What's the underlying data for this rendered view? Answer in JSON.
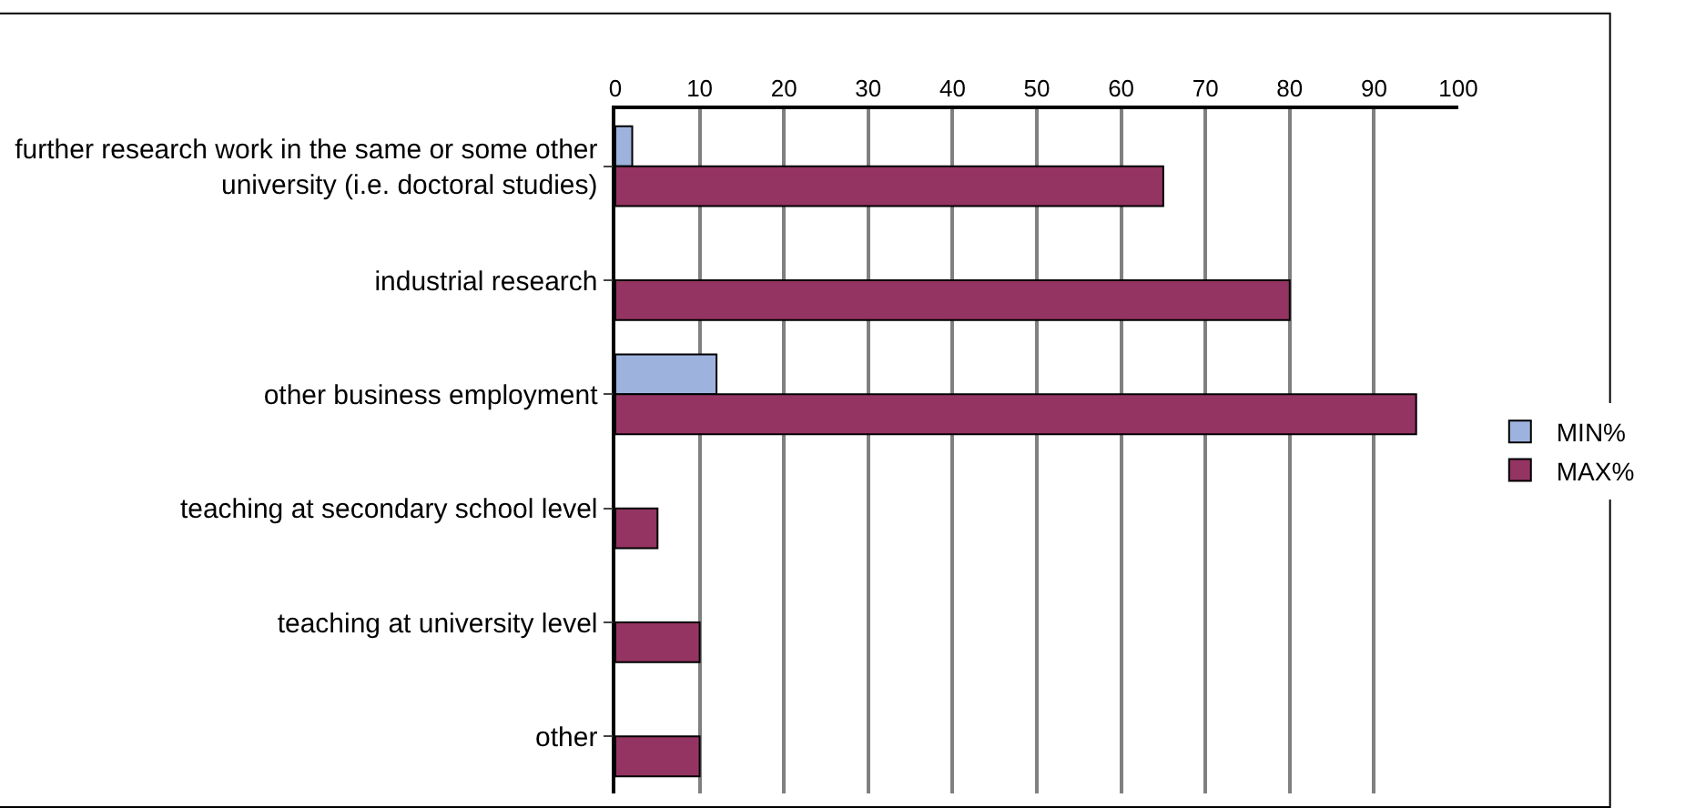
{
  "chart_data": {
    "type": "bar",
    "orientation": "horizontal",
    "categories": [
      "further research work in the same or some other university (i.e. doctoral studies)",
      "industrial research",
      "other business employment",
      "teaching at secondary school level",
      "teaching at university level",
      "other"
    ],
    "series": [
      {
        "name": "MIN%",
        "color": "#9db3de",
        "values": [
          2,
          null,
          12,
          null,
          null,
          null
        ]
      },
      {
        "name": "MAX%",
        "color": "#943462",
        "values": [
          65,
          80,
          95,
          5,
          10,
          10
        ]
      }
    ],
    "xlim": [
      0,
      100
    ],
    "xticks": [
      0,
      10,
      20,
      30,
      40,
      50,
      60,
      70,
      80,
      90,
      100
    ],
    "grid": "x",
    "legend": "right"
  }
}
